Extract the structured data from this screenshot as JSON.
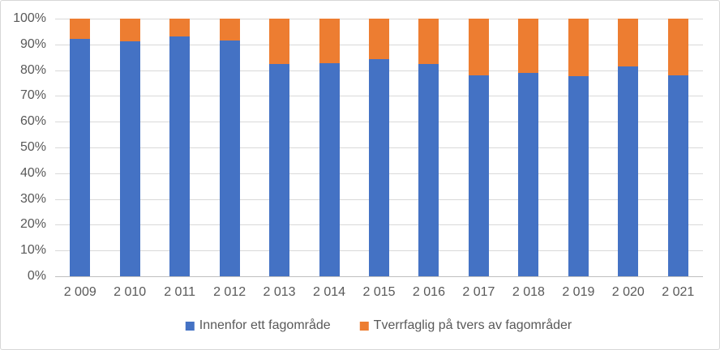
{
  "chart_data": {
    "type": "bar",
    "subtype": "stacked-100-percent-column",
    "title": "",
    "xlabel": "",
    "ylabel": "",
    "categories": [
      "2 009",
      "2 010",
      "2 011",
      "2 012",
      "2 013",
      "2 014",
      "2 015",
      "2 016",
      "2 017",
      "2 018",
      "2 019",
      "2 020",
      "2 021"
    ],
    "series": [
      {
        "name": "Innenfor ett fagområde",
        "color": "#4472C4",
        "values": [
          92.0,
          91.2,
          93.0,
          91.6,
          82.3,
          82.7,
          84.4,
          82.4,
          78.0,
          78.9,
          77.7,
          81.4,
          77.9
        ]
      },
      {
        "name": "Tverrfaglig på tvers av fagområder",
        "color": "#ED7D31",
        "values": [
          8.0,
          8.8,
          7.0,
          8.4,
          17.7,
          17.3,
          15.6,
          17.6,
          22.0,
          21.1,
          22.3,
          18.6,
          22.1
        ]
      }
    ],
    "y_axis": {
      "min": 0,
      "max": 100,
      "step": 10,
      "ticks": [
        "0%",
        "10%",
        "20%",
        "30%",
        "40%",
        "50%",
        "60%",
        "70%",
        "80%",
        "90%",
        "100%"
      ]
    },
    "grid": true,
    "legend_position": "bottom",
    "colors": {
      "gridline": "#D9D9D9",
      "axis_line": "#BFBFBF",
      "text": "#595959",
      "border": "#D7D7D7",
      "background": "#FFFFFF"
    }
  }
}
